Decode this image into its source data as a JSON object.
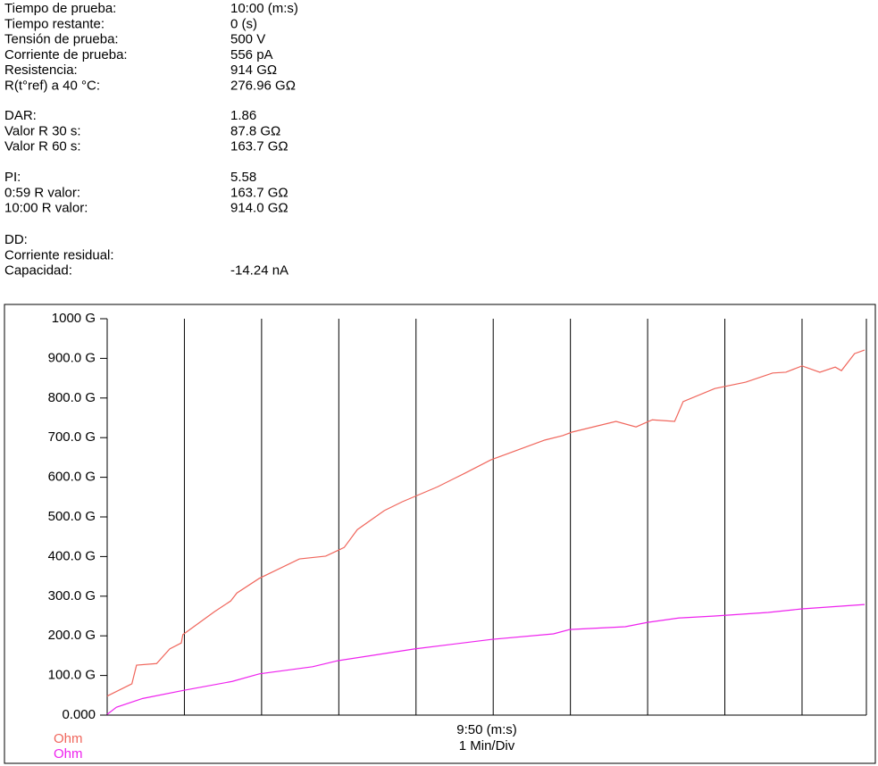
{
  "info": {
    "sections": [
      [
        [
          "Tiempo de prueba:",
          "10:00 (m:s)"
        ],
        [
          "Tiempo restante:",
          "0 (s)"
        ],
        [
          "Tensión de prueba:",
          "500 V"
        ],
        [
          "Corriente de prueba:",
          "556 pA"
        ],
        [
          "Resistencia:",
          "914 GΩ"
        ],
        [
          "R(t°ref) a 40 °C:",
          "276.96 GΩ"
        ]
      ],
      [
        [
          "DAR:",
          "1.86"
        ],
        [
          "Valor R 30 s:",
          "87.8 GΩ"
        ],
        [
          "Valor R 60 s:",
          "163.7 GΩ"
        ]
      ],
      [
        [
          "PI:",
          "5.58"
        ],
        [
          "0:59 R valor:",
          "163.7 GΩ"
        ],
        [
          "10:00 R valor:",
          "914.0 GΩ"
        ]
      ],
      [
        [
          "DD:"
        ],
        [
          "Corriente residual:"
        ],
        [
          "Capacidad:",
          "-14.24 nA"
        ]
      ]
    ]
  },
  "chart_data": {
    "type": "line",
    "x_label": "9:50 (m:s)",
    "x_sublabel": "1 Min/Div",
    "xlim": [
      0,
      9.8333
    ],
    "xticks": [
      1,
      2,
      3,
      4,
      5,
      6,
      7,
      8,
      9
    ],
    "ylim": [
      0,
      1000
    ],
    "yticks": [
      {
        "value": 0,
        "label": "0.000"
      },
      {
        "value": 100,
        "label": "100.0 G"
      },
      {
        "value": 200,
        "label": "200.0 G"
      },
      {
        "value": 300,
        "label": "300.0 G"
      },
      {
        "value": 400,
        "label": "400.0 G"
      },
      {
        "value": 500,
        "label": "500.0 G"
      },
      {
        "value": 600,
        "label": "600.0 G"
      },
      {
        "value": 700,
        "label": "700.0 G"
      },
      {
        "value": 800,
        "label": "800.0 G"
      },
      {
        "value": 900,
        "label": "900.0 G"
      },
      {
        "value": 1000,
        "label": "1000 G"
      }
    ],
    "grid": true,
    "series": [
      {
        "name": "Ohm",
        "color": "#f0665c",
        "x": [
          0,
          0.32,
          0.38,
          0.64,
          0.81,
          0.96,
          0.98,
          1.39,
          1.6,
          1.68,
          1.97,
          2.49,
          2.83,
          3.07,
          3.24,
          3.59,
          3.82,
          4.28,
          4.63,
          4.97,
          5.32,
          5.67,
          5.9,
          6.02,
          6.59,
          6.85,
          7.06,
          7.35,
          7.46,
          7.87,
          8.27,
          8.62,
          8.79,
          9.0,
          9.23,
          9.43,
          9.51,
          9.68,
          9.81
        ],
        "values": [
          48,
          79,
          126,
          130,
          167,
          182,
          203,
          261,
          288,
          308,
          345,
          394,
          401,
          423,
          468,
          516,
          538,
          576,
          610,
          644,
          669,
          694,
          705,
          714,
          741,
          727,
          745,
          741,
          791,
          824,
          840,
          863,
          865,
          881,
          865,
          878,
          869,
          912,
          921
        ]
      },
      {
        "name": "Ohm",
        "color": "#ee22ee",
        "x": [
          0,
          0.12,
          0.46,
          0.98,
          1.62,
          1.97,
          2.66,
          2.98,
          3.98,
          4.98,
          5.78,
          5.99,
          6.71,
          7.0,
          7.4,
          7.87,
          8.56,
          9.0,
          9.81
        ],
        "values": [
          2,
          20,
          42,
          62,
          85,
          104,
          122,
          137,
          167,
          191,
          205,
          216,
          223,
          234,
          245,
          250,
          259,
          268,
          279
        ]
      }
    ]
  }
}
